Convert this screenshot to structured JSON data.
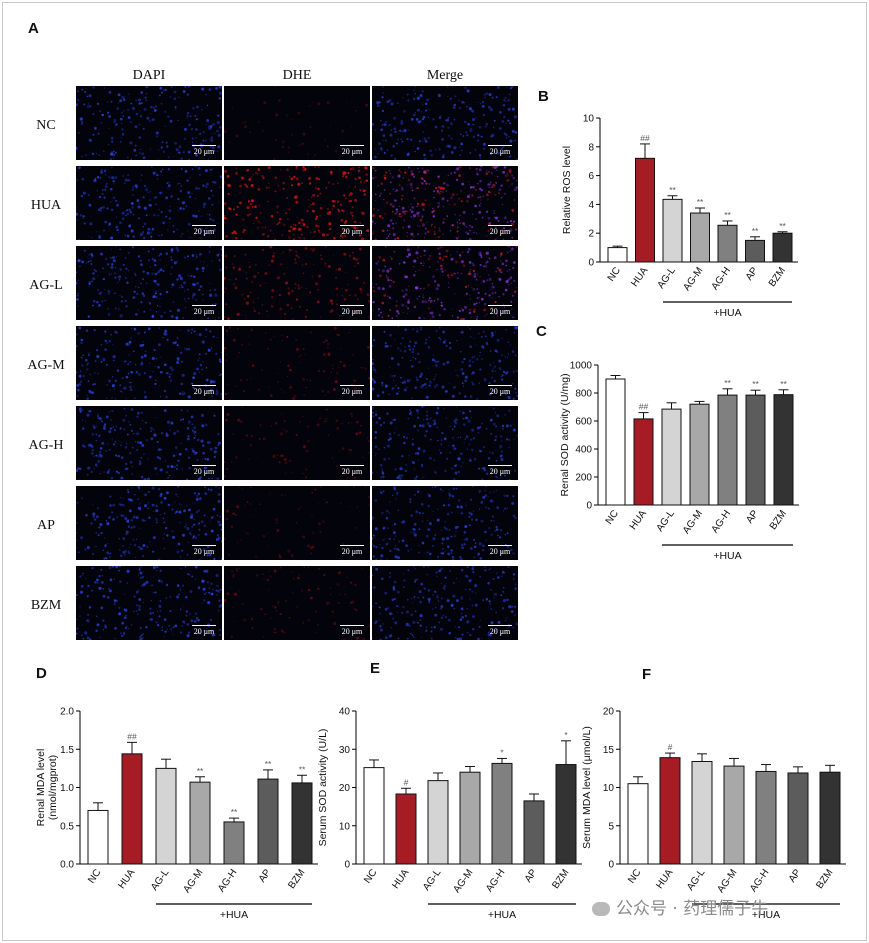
{
  "panels": {
    "A": "A",
    "B": "B",
    "C": "C",
    "D": "D",
    "E": "E",
    "F": "F"
  },
  "micrograph": {
    "columns": [
      "DAPI",
      "DHE",
      "Merge"
    ],
    "rows": [
      "NC",
      "HUA",
      "AG-L",
      "AG-M",
      "AG-H",
      "AP",
      "BZM"
    ],
    "scale_bar": "20 μm",
    "dhe_intensity": [
      0.05,
      0.85,
      0.45,
      0.25,
      0.18,
      0.12,
      0.22
    ],
    "colors": {
      "dapi": "#2f4cff",
      "dhe": "#e01818",
      "merge": "#a23cff",
      "background": "#02030b"
    }
  },
  "chart_data": [
    {
      "id": "B",
      "type": "bar",
      "categories": [
        "NC",
        "HUA",
        "AG-L",
        "AG-M",
        "AG-H",
        "AP",
        "BZM"
      ],
      "values": [
        1.0,
        7.2,
        4.35,
        3.4,
        2.55,
        1.5,
        2.0
      ],
      "errors": [
        0.1,
        1.0,
        0.25,
        0.35,
        0.3,
        0.25,
        0.1
      ],
      "annotations": [
        "",
        "##",
        "**",
        "**",
        "**",
        "**",
        "**"
      ],
      "ylabel": "Relative ROS level",
      "ylim": [
        0,
        10
      ],
      "yticks": [
        0,
        2,
        4,
        6,
        8,
        10
      ],
      "group_label": "+HUA"
    },
    {
      "id": "C",
      "type": "bar",
      "categories": [
        "NC",
        "HUA",
        "AG-L",
        "AG-M",
        "AG-H",
        "AP",
        "BZM"
      ],
      "values": [
        900,
        615,
        685,
        720,
        785,
        785,
        788
      ],
      "errors": [
        25,
        45,
        45,
        20,
        45,
        35,
        35
      ],
      "annotations": [
        "",
        "##",
        "",
        "",
        "**",
        "**",
        "**"
      ],
      "ylabel": "Renal SOD activity (U/mg)",
      "ylim": [
        0,
        1000
      ],
      "yticks": [
        0,
        200,
        400,
        600,
        800,
        1000
      ],
      "group_label": "+HUA"
    },
    {
      "id": "D",
      "type": "bar",
      "categories": [
        "NC",
        "HUA",
        "AG-L",
        "AG-M",
        "AG-H",
        "AP",
        "BZM"
      ],
      "values": [
        0.7,
        1.44,
        1.25,
        1.07,
        0.55,
        1.11,
        1.06
      ],
      "errors": [
        0.1,
        0.15,
        0.12,
        0.07,
        0.05,
        0.12,
        0.1
      ],
      "annotations": [
        "",
        "##",
        "",
        "**",
        "**",
        "**",
        "**"
      ],
      "ylabel": "Renal MDA level (nmol/mgprot)",
      "ylim": [
        0,
        2.0
      ],
      "yticks": [
        "0.0",
        "0.5",
        "1.0",
        "1.5",
        "2.0"
      ],
      "group_label": "+HUA"
    },
    {
      "id": "E",
      "type": "bar",
      "categories": [
        "NC",
        "HUA",
        "AG-L",
        "AG-M",
        "AG-H",
        "AP",
        "BZM"
      ],
      "values": [
        25.2,
        18.3,
        21.8,
        24.0,
        26.3,
        16.5,
        26.0
      ],
      "errors": [
        2.0,
        1.5,
        2.0,
        1.5,
        1.3,
        1.8,
        6.2
      ],
      "annotations": [
        "",
        "#",
        "",
        "",
        "*",
        "",
        "*"
      ],
      "ylabel": "Serum SOD activity (U/L)",
      "ylim": [
        0,
        40
      ],
      "yticks": [
        0,
        10,
        20,
        30,
        40
      ],
      "group_label": "+HUA"
    },
    {
      "id": "F",
      "type": "bar",
      "categories": [
        "NC",
        "HUA",
        "AG-L",
        "AG-M",
        "AG-H",
        "AP",
        "BZM"
      ],
      "values": [
        10.5,
        13.9,
        13.4,
        12.8,
        12.1,
        11.9,
        12.0
      ],
      "errors": [
        0.9,
        0.6,
        1.0,
        1.0,
        0.9,
        0.8,
        0.9
      ],
      "annotations": [
        "",
        "#",
        "",
        "",
        "",
        "",
        ""
      ],
      "ylabel": "Serum MDA level (μmol/L)",
      "ylim": [
        0,
        20
      ],
      "yticks": [
        0,
        5,
        10,
        15,
        20
      ],
      "group_label": "+HUA"
    }
  ],
  "bar_fills": [
    "#ffffff",
    "#a51c24",
    "#d4d4d4",
    "#a8a8a8",
    "#808080",
    "#5c5c5c",
    "#333333"
  ],
  "watermark": "公众号 · 药理儒子牛"
}
